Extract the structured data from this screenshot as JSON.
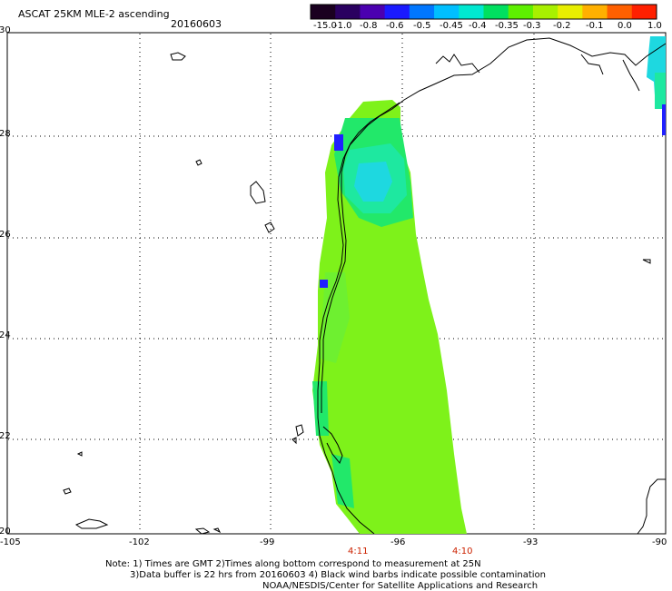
{
  "header": {
    "title": "ASCAT 25KM MLE-2 ascending",
    "date": "20160603"
  },
  "colorbar": {
    "labels": [
      "-15.0",
      "-1.0",
      "-0.8",
      "-0.6",
      "-0.5",
      "-0.45",
      "-0.4",
      "-0.35",
      "-0.3",
      "-0.2",
      "-0.1",
      "0.0",
      "1.0"
    ],
    "colors": [
      "#1a0020",
      "#2a0060",
      "#4b00b0",
      "#1a1aff",
      "#0077ff",
      "#00bfff",
      "#00e8d0",
      "#00e060",
      "#5ef000",
      "#a8f000",
      "#e8ee00",
      "#ffb000",
      "#ff6000",
      "#ff2000"
    ]
  },
  "map": {
    "lon_labels": [
      "-105",
      "-102",
      "-99",
      "-96",
      "-93",
      "-90"
    ],
    "lat_labels": [
      "20",
      "22",
      "24",
      "26",
      "28",
      "30"
    ],
    "swath_colors": {
      "main": "#7ef21a",
      "light": "#6ef030",
      "cyan": "#1ee8a0",
      "aqua": "#1ed8e0",
      "blue": "#2020ff",
      "green": "#22e86a"
    }
  },
  "times": {
    "left": "4:11",
    "right": "4:10"
  },
  "footer": {
    "line1": "Note: 1) Times are GMT 2)Times along bottom correspond to measurement at 25N",
    "line2": "3)Data buffer is 22 hrs from 20160603 4) Black wind barbs indicate possible contamination",
    "line3": "NOAA/NESDIS/Center for Satellite Applications and Research"
  }
}
